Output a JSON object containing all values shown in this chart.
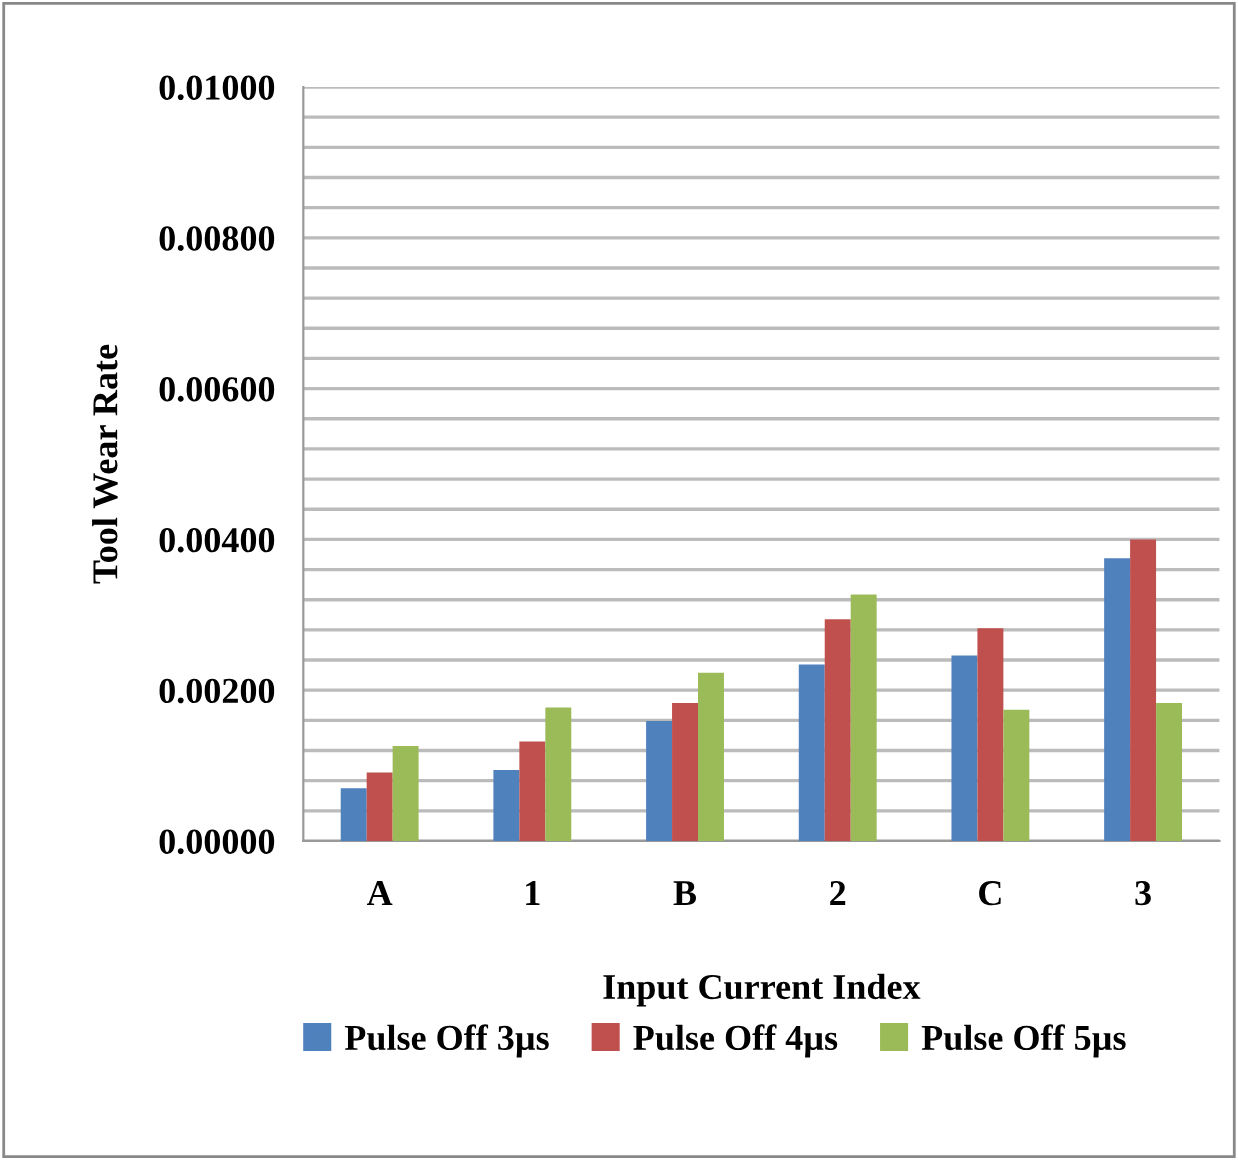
{
  "chart_data": {
    "type": "bar",
    "xlabel": "Input Current Index",
    "ylabel": "Tool Wear Rate",
    "categories": [
      "A",
      "1",
      "B",
      "2",
      "C",
      "3"
    ],
    "series": [
      {
        "name": "Pulse Off 3µs",
        "color": "#4f81bd",
        "values": [
          0.0007,
          0.00094,
          0.00159,
          0.00234,
          0.00246,
          0.00375
        ]
      },
      {
        "name": "Pulse Off 4µs",
        "color": "#c0504d",
        "values": [
          0.00091,
          0.00132,
          0.00183,
          0.00294,
          0.00282,
          0.004
        ]
      },
      {
        "name": "Pulse Off 5µs",
        "color": "#9bbb59",
        "values": [
          0.00126,
          0.00177,
          0.00223,
          0.00327,
          0.00174,
          0.00183
        ]
      }
    ],
    "ylim": [
      0,
      0.01
    ],
    "yticks": [
      {
        "value": 0,
        "label": "0.00000"
      },
      {
        "value": 0.0004,
        "label": null
      },
      {
        "value": 0.0008,
        "label": null
      },
      {
        "value": 0.0012,
        "label": null
      },
      {
        "value": 0.0016,
        "label": null
      },
      {
        "value": 0.002,
        "label": "0.00200"
      },
      {
        "value": 0.0024,
        "label": null
      },
      {
        "value": 0.0028,
        "label": null
      },
      {
        "value": 0.0032,
        "label": null
      },
      {
        "value": 0.0036,
        "label": null
      },
      {
        "value": 0.004,
        "label": "0.00400"
      },
      {
        "value": 0.0044,
        "label": null
      },
      {
        "value": 0.0048,
        "label": null
      },
      {
        "value": 0.0052,
        "label": null
      },
      {
        "value": 0.0056,
        "label": null
      },
      {
        "value": 0.006,
        "label": "0.00600"
      },
      {
        "value": 0.0064,
        "label": null
      },
      {
        "value": 0.0068,
        "label": null
      },
      {
        "value": 0.0072,
        "label": null
      },
      {
        "value": 0.0076,
        "label": null
      },
      {
        "value": 0.008,
        "label": "0.00800"
      },
      {
        "value": 0.0084,
        "label": null
      },
      {
        "value": 0.0088,
        "label": null
      },
      {
        "value": 0.0092,
        "label": null
      },
      {
        "value": 0.0096,
        "label": null
      },
      {
        "value": 0.01,
        "label": "0.01000"
      }
    ],
    "grid": "y",
    "legend": "bottom"
  }
}
